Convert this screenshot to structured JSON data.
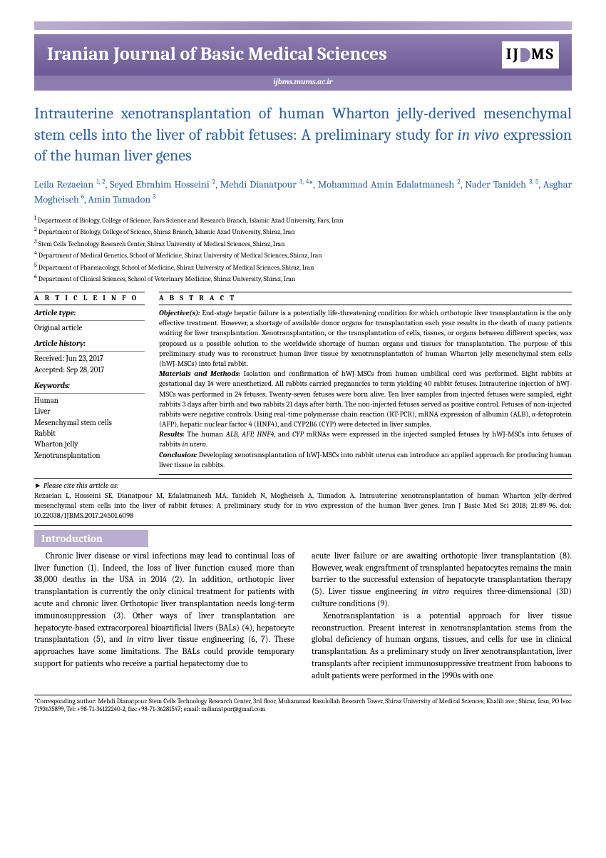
{
  "journal": {
    "name": "Iranian Journal of Basic Medical Sciences",
    "url": "ijbms.mums.ac.ir",
    "logo_text_left": "IJ",
    "logo_text_right": "MS"
  },
  "colors": {
    "title_color": "#2b5fa8",
    "banner_gradient_top": "#8c7cb0",
    "banner_gradient_bottom": "#6d5a95",
    "heading_bg": "#b9aed0",
    "text_color": "#000000",
    "white": "#ffffff"
  },
  "article": {
    "title_part1": "Intrauterine xenotransplantation of human Wharton jelly-derived mesenchymal stem cells into the liver of rabbit fetuses: A preliminary study for ",
    "title_italic": "in vivo",
    "title_part2": " expression of the human liver genes",
    "authors_html": "Leila Rezaeian <sup>1, 2</sup>, Seyed Ebrahim Hosseini <sup>2</sup>, Mehdi Dianatpour <sup>3, 4</sup>*, Mohammad Amin Edalatmanesh <sup>2</sup>, Nader Tanideh <sup>3, 5</sup>, Asghar Mogheiseh <sup>6</sup>, Amin Tamadon <sup>3</sup>"
  },
  "affiliations": [
    "Department of Biology, College of Science, Fars Science and Research Branch, Islamic Azad University, Fars, Iran",
    "Department of Biology, College of Science, Shiraz Branch, Islamic Azad University, Shiraz, Iran",
    "Stem Cells Technology Research Center, Shiraz University of Medical Sciences, Shiraz, Iran",
    "Department of Medical Genetics, School of Medicine, Shiraz University of Medical Sciences, Shiraz, Iran",
    "Department of Pharmacology, School of Medicine, Shiraz University of Medical Sciences, Shiraz, Iran",
    "Department of Clinical Sciences, School of Veterinary Medicine, Shiraz University, Shiraz, Iran"
  ],
  "info": {
    "header": "A R T I C L E  I N F O",
    "type_label": "Article type:",
    "type_value": "Original article",
    "history_label": "Article history:",
    "received": "Received: Jun 23, 2017",
    "accepted": "Accepted: Sep 28, 2017",
    "keywords_label": "Keywords:",
    "keywords": [
      "Human",
      "Liver",
      "Mesenchymal stem cells",
      "Rabbit",
      "Wharton jelly",
      "Xenotransplantation"
    ]
  },
  "abstract": {
    "header": "A B S T R A C T",
    "objective_label": "Objective(s):",
    "objective_text": " End-stage hepatic failure is a potentially life-threatening condition for which orthotopic liver transplantation is the only effective treatment. However, a shortage of available donor organs for transplantation each year results in the death of many patients waiting for liver transplantation. Xenotransplantation, or the transplantation of cells, tissues, or organs between different species, was proposed as a possible solution to the worldwide shortage of human organs and tissues for transplantation. The purpose of this preliminary study was to reconstruct human liver tissue by xenotransplantation of human Wharton jelly mesenchymal stem cells (hWJ-MSCs) into fetal rabbit.",
    "methods_label": "Materials and Methods:",
    "methods_text": " Isolation and confirmation of hWJ-MSCs from human umbilical cord was performed. Eight rabbits at gestational day 14 were anesthetized. All rabbits carried pregnancies to term yielding 40 rabbit fetuses. Intrauterine injection of hWJ-MSCs was performed in 24 fetuses. Twenty-seven fetuses were born alive. Ten liver samples from injected fetuses were sampled, eight rabbits 3 days after birth and two rabbits 21 days after birth. The non-injected fetuses served as positive control. Fetuses of non-injected rabbits were negative controls. Using real-time polymerase chain reaction (RT-PCR), mRNA expression of albumin (ALB), α-fetoprotein (AFP), hepatic nuclear factor 4 (HNF4), and CYP2B6 (CYP) were detected in liver samples.",
    "results_label": "Results:",
    "results_text_1": " The human ",
    "results_italic": "ALB, AFP, HNF4",
    "results_text_2": ", and ",
    "results_italic2": "CYP",
    "results_text_3": " mRNAs were expressed in the injected sampled fetuses by hWJ-MSCs into fetuses of rabbits ",
    "results_italic3": "in utero",
    "results_text_4": ".",
    "conclusion_label": "Conclusion:",
    "conclusion_text": " Developing xenotransplantation of hWJ-MSCs into rabbit uterus can introduce an applied approach for producing human liver tissue in rabbits."
  },
  "citation": {
    "label": "Please cite this article as:",
    "text": "Rezaeian L, Hosseini SE, Dianatpour M, Edalatmanesh MA, Tanideh N, Mogheiseh A, Tamadon A. Intrauterine xenotransplantation of human Wharton jelly-derived mesenchymal stem cells into the liver of rabbit fetuses: A preliminary study for in vivo expression of the human liver genes. Iran J Basic Med Sci 2018; 21:89-96. doi: 10.22038/IJBMS.2017.24501.6098"
  },
  "intro": {
    "heading": "Introduction",
    "col1_html": "Chronic liver disease or viral infections may lead to continual loss of liver function (1). Indeed, the loss of liver function caused more than 38,000 deaths in the USA in 2014 (2). In addition, orthotopic liver transplantation is currently the only clinical treatment for patients with acute and chronic liver. Orthotopic liver transplantation needs long-term immunosuppression (3). Other ways of liver transplantation are hepatocyte-based extracorporeal bioartificial livers (BALs) (4), hepatocyte transplantation (5), and <span class=\"italic\">in vitro</span> liver tissue engineering (6, 7). These approaches have some limitations. The BALs could provide temporary support for patients who receive a partial hepatectomy due to",
    "col2_p1_html": "acute liver failure or are awaiting orthotopic liver transplantation (8). However, weak engraftment of transplanted hepatocytes remains the main barrier to the successful extension of hepatocyte transplantation therapy (5). Liver tissue engineering <span class=\"italic\">in vitro</span> requires three-dimensional (3D) culture conditions (9).",
    "col2_p2_html": "Xenotransplantation is a potential approach for liver tissue reconstruction. Present interest in xenotransplantation stems from the global deficiency of human organs, tissues, and cells for use in clinical transplantation. As a preliminary study on liver xenotransplantation, liver transplants after recipient immunosuppressive treatment from baboons to adult patients were performed in the 1990s with one"
  },
  "footer": {
    "text": "*Corresponding author: Mehdi Dianatpour. Stem Cells Technology Research Center, 3rd floor, Muhammad Rasulollah Research Tower, Shiraz University of Medical Sciences, Khalili ave.; Shiraz, Iran, PO box: 7193635899, Tel: +98-71-36122240-2, fax:+98-71-36281547; email: mdianatpur@gmail.com"
  }
}
